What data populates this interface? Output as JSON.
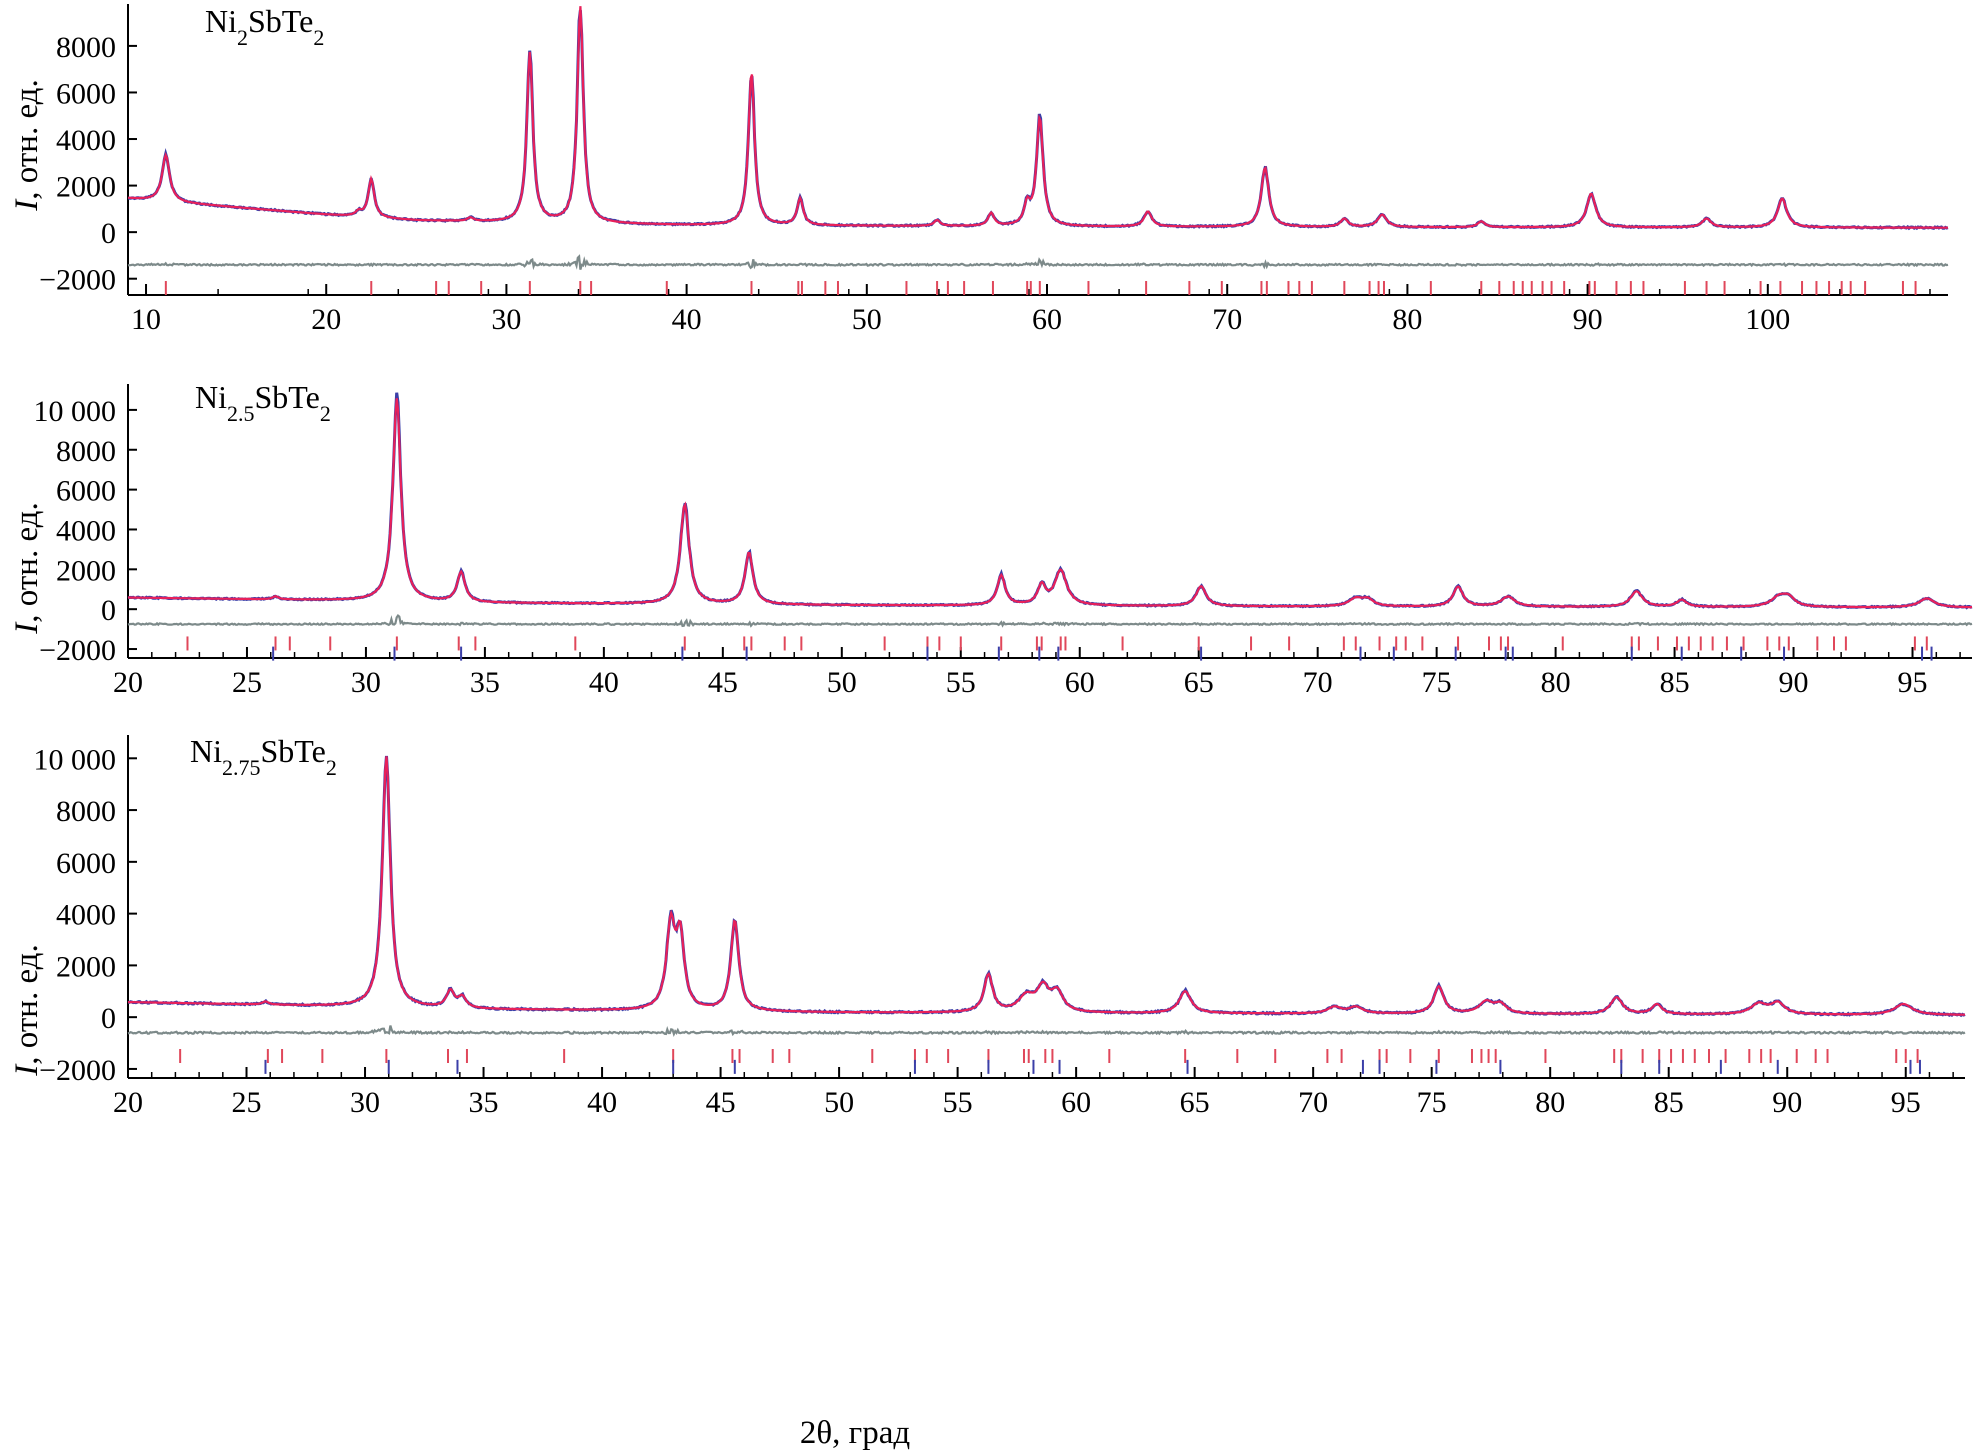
{
  "figure": {
    "xlabel": "2θ, град",
    "ylabel_italic": "I",
    "ylabel_rest": ", отн. ед."
  },
  "colors": {
    "observed": "#3b3fa8",
    "calculated": "#e8205a",
    "difference": "#7d8a8a",
    "ticks_phase1": "#e0475a",
    "ticks_phase2": "#3b3fa8",
    "axis": "#000000"
  },
  "chart_data": [
    {
      "type": "line",
      "title_parts": [
        "Ni",
        "2",
        "SbTe",
        "2"
      ],
      "xlim": [
        9,
        110
      ],
      "ylim": [
        -2700,
        9800
      ],
      "xticks": [
        10,
        20,
        30,
        40,
        50,
        60,
        70,
        80,
        90,
        100
      ],
      "yticks": [
        -2000,
        0,
        2000,
        4000,
        6000,
        8000
      ],
      "ytick_labels": [
        "−2000",
        "0",
        "2000",
        "4000",
        "6000",
        "8000"
      ],
      "background": [
        [
          9,
          1450
        ],
        [
          12,
          1250
        ],
        [
          20,
          750
        ],
        [
          25,
          500
        ],
        [
          30,
          420
        ],
        [
          40,
          300
        ],
        [
          60,
          240
        ],
        [
          80,
          210
        ],
        [
          110,
          190
        ]
      ],
      "peaks": [
        {
          "x": 11.1,
          "h": 2000,
          "w": 0.25
        },
        {
          "x": 21.8,
          "h": 200,
          "w": 0.2
        },
        {
          "x": 22.5,
          "h": 1650,
          "w": 0.2
        },
        {
          "x": 28.0,
          "h": 150,
          "w": 0.2
        },
        {
          "x": 31.3,
          "h": 7300,
          "w": 0.2
        },
        {
          "x": 34.1,
          "h": 9300,
          "w": 0.2
        },
        {
          "x": 43.6,
          "h": 6600,
          "w": 0.2
        },
        {
          "x": 46.3,
          "h": 1150,
          "w": 0.2
        },
        {
          "x": 53.9,
          "h": 250,
          "w": 0.2
        },
        {
          "x": 56.9,
          "h": 550,
          "w": 0.2
        },
        {
          "x": 58.9,
          "h": 850,
          "w": 0.2
        },
        {
          "x": 59.6,
          "h": 4650,
          "w": 0.22
        },
        {
          "x": 65.6,
          "h": 650,
          "w": 0.25
        },
        {
          "x": 72.1,
          "h": 2550,
          "w": 0.25
        },
        {
          "x": 76.5,
          "h": 350,
          "w": 0.25
        },
        {
          "x": 78.6,
          "h": 530,
          "w": 0.3
        },
        {
          "x": 84.1,
          "h": 250,
          "w": 0.25
        },
        {
          "x": 90.2,
          "h": 1450,
          "w": 0.3
        },
        {
          "x": 96.6,
          "h": 380,
          "w": 0.3
        },
        {
          "x": 100.8,
          "h": 1250,
          "w": 0.3
        }
      ],
      "diff_offset": -1400,
      "tick_rows": [
        {
          "y": -2400,
          "color": "#e0475a",
          "positions": [
            11.1,
            22.5,
            26.1,
            26.8,
            28.6,
            31.3,
            34.1,
            34.7,
            38.9,
            43.6,
            46.2,
            46.4,
            47.7,
            48.4,
            52.2,
            53.9,
            54.5,
            55.4,
            57.0,
            58.9,
            59.1,
            59.6,
            62.3,
            65.5,
            67.9,
            69.7,
            71.9,
            72.2,
            73.4,
            74.0,
            74.7,
            76.5,
            77.9,
            78.4,
            78.7,
            81.3,
            84.1,
            85.1,
            85.9,
            86.4,
            86.9,
            87.5,
            88.0,
            88.7,
            90.1,
            90.4,
            91.6,
            92.4,
            93.1,
            95.4,
            96.6,
            97.6,
            99.6,
            100.7,
            101.9,
            102.7,
            103.4,
            104.1,
            104.6,
            105.4,
            107.5,
            108.2
          ]
        }
      ]
    },
    {
      "type": "line",
      "title_parts": [
        "Ni",
        "2.5",
        "SbTe",
        "2"
      ],
      "xlim": [
        20,
        97.5
      ],
      "ylim": [
        -2450,
        11300
      ],
      "xticks": [
        20,
        25,
        30,
        35,
        40,
        45,
        50,
        55,
        60,
        65,
        70,
        75,
        80,
        85,
        90,
        95
      ],
      "yticks": [
        -2000,
        0,
        2000,
        4000,
        6000,
        8000,
        10000
      ],
      "ytick_labels": [
        "−2000",
        "0",
        "2000",
        "4000",
        "6000",
        "8000",
        "10 000"
      ],
      "background": [
        [
          20,
          580
        ],
        [
          25,
          500
        ],
        [
          28,
          450
        ],
        [
          35,
          310
        ],
        [
          50,
          200
        ],
        [
          70,
          130
        ],
        [
          97.5,
          80
        ]
      ],
      "peaks": [
        {
          "x": 26.2,
          "h": 150,
          "w": 0.15
        },
        {
          "x": 31.3,
          "h": 10200,
          "w": 0.2
        },
        {
          "x": 34.0,
          "h": 1500,
          "w": 0.2
        },
        {
          "x": 43.4,
          "h": 5000,
          "w": 0.22
        },
        {
          "x": 46.1,
          "h": 2600,
          "w": 0.2
        },
        {
          "x": 56.7,
          "h": 1500,
          "w": 0.2
        },
        {
          "x": 58.4,
          "h": 950,
          "w": 0.2
        },
        {
          "x": 59.2,
          "h": 1750,
          "w": 0.3
        },
        {
          "x": 65.1,
          "h": 1000,
          "w": 0.25
        },
        {
          "x": 71.6,
          "h": 380,
          "w": 0.35
        },
        {
          "x": 72.1,
          "h": 330,
          "w": 0.3
        },
        {
          "x": 75.9,
          "h": 1000,
          "w": 0.25
        },
        {
          "x": 78.0,
          "h": 500,
          "w": 0.35
        },
        {
          "x": 83.4,
          "h": 780,
          "w": 0.3
        },
        {
          "x": 85.3,
          "h": 350,
          "w": 0.25
        },
        {
          "x": 89.4,
          "h": 500,
          "w": 0.4
        },
        {
          "x": 89.8,
          "h": 400,
          "w": 0.3
        },
        {
          "x": 95.6,
          "h": 450,
          "w": 0.4
        }
      ],
      "diff_offset": -750,
      "tick_rows": [
        {
          "y": -1720,
          "color": "#e0475a",
          "positions": [
            22.5,
            26.2,
            26.8,
            28.5,
            31.3,
            33.9,
            34.6,
            38.8,
            43.4,
            45.9,
            46.2,
            47.6,
            48.3,
            51.8,
            53.6,
            54.1,
            55.0,
            56.7,
            58.2,
            58.4,
            59.2,
            59.4,
            61.8,
            65.0,
            67.2,
            68.8,
            71.1,
            71.6,
            72.6,
            73.3,
            73.7,
            74.4,
            75.9,
            77.2,
            77.7,
            78.0,
            80.3,
            83.2,
            83.5,
            84.3,
            85.1,
            85.6,
            86.1,
            86.6,
            87.2,
            87.9,
            88.9,
            89.4,
            89.8,
            91.0,
            91.7,
            92.2,
            95.1,
            95.6
          ]
        },
        {
          "y": -2230,
          "color": "#3b3fa8",
          "positions": [
            26.1,
            31.2,
            34.0,
            43.3,
            46.0,
            53.6,
            56.6,
            58.3,
            59.1,
            65.1,
            71.8,
            73.2,
            75.8,
            77.9,
            78.2,
            83.2,
            85.3,
            87.8,
            89.6,
            95.4,
            95.8
          ]
        }
      ]
    },
    {
      "type": "line",
      "title_parts": [
        "Ni",
        "2.75",
        "SbTe",
        "2"
      ],
      "xlim": [
        20,
        97.5
      ],
      "ylim": [
        -2350,
        10900
      ],
      "xticks": [
        20,
        25,
        30,
        35,
        40,
        45,
        50,
        55,
        60,
        65,
        70,
        75,
        80,
        85,
        90,
        95
      ],
      "yticks": [
        -2000,
        0,
        2000,
        4000,
        6000,
        8000,
        10000
      ],
      "ytick_labels": [
        "−2000",
        "0",
        "2000",
        "4000",
        "6000",
        "8000",
        "10 000"
      ],
      "background": [
        [
          20,
          580
        ],
        [
          25,
          490
        ],
        [
          28,
          430
        ],
        [
          35,
          300
        ],
        [
          50,
          180
        ],
        [
          70,
          130
        ],
        [
          97.5,
          80
        ]
      ],
      "peaks": [
        {
          "x": 25.8,
          "h": 120,
          "w": 0.15
        },
        {
          "x": 30.9,
          "h": 9700,
          "w": 0.2
        },
        {
          "x": 33.6,
          "h": 650,
          "w": 0.2
        },
        {
          "x": 34.1,
          "h": 420,
          "w": 0.2
        },
        {
          "x": 42.9,
          "h": 3200,
          "w": 0.22
        },
        {
          "x": 43.3,
          "h": 2700,
          "w": 0.2
        },
        {
          "x": 45.6,
          "h": 3500,
          "w": 0.2
        },
        {
          "x": 56.3,
          "h": 1450,
          "w": 0.22
        },
        {
          "x": 57.9,
          "h": 600,
          "w": 0.4
        },
        {
          "x": 58.6,
          "h": 900,
          "w": 0.3
        },
        {
          "x": 59.2,
          "h": 750,
          "w": 0.3
        },
        {
          "x": 64.6,
          "h": 850,
          "w": 0.3
        },
        {
          "x": 70.9,
          "h": 250,
          "w": 0.35
        },
        {
          "x": 71.8,
          "h": 250,
          "w": 0.35
        },
        {
          "x": 75.3,
          "h": 1050,
          "w": 0.25
        },
        {
          "x": 77.3,
          "h": 450,
          "w": 0.35
        },
        {
          "x": 77.9,
          "h": 350,
          "w": 0.3
        },
        {
          "x": 82.8,
          "h": 650,
          "w": 0.3
        },
        {
          "x": 84.5,
          "h": 380,
          "w": 0.25
        },
        {
          "x": 88.8,
          "h": 400,
          "w": 0.4
        },
        {
          "x": 89.6,
          "h": 430,
          "w": 0.35
        },
        {
          "x": 94.9,
          "h": 420,
          "w": 0.45
        }
      ],
      "diff_offset": -600,
      "tick_rows": [
        {
          "y": -1500,
          "color": "#e0475a",
          "positions": [
            22.2,
            25.9,
            26.5,
            28.2,
            30.9,
            33.5,
            34.3,
            38.4,
            43.0,
            45.5,
            45.8,
            47.2,
            47.9,
            51.4,
            53.2,
            53.7,
            54.6,
            56.3,
            57.8,
            58.0,
            58.7,
            59.0,
            61.4,
            64.6,
            66.8,
            68.4,
            70.6,
            71.2,
            72.8,
            73.1,
            74.1,
            75.3,
            76.7,
            77.1,
            77.4,
            77.7,
            79.8,
            82.7,
            83.0,
            83.9,
            84.6,
            85.1,
            85.6,
            86.1,
            86.7,
            87.4,
            88.4,
            88.9,
            89.3,
            90.4,
            91.2,
            91.7,
            94.6,
            95.0,
            95.5
          ]
        },
        {
          "y": -1920,
          "color": "#3b3fa8",
          "positions": [
            25.8,
            31.0,
            33.9,
            43.0,
            45.6,
            53.2,
            56.3,
            58.2,
            59.3,
            64.7,
            72.1,
            72.8,
            75.2,
            77.9,
            83.0,
            84.6,
            87.2,
            89.6,
            95.2,
            95.6
          ]
        }
      ]
    }
  ]
}
